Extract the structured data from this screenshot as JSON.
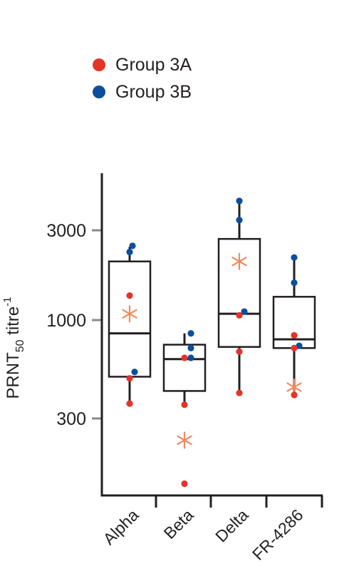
{
  "chart_data": {
    "type": "box",
    "ylabel_main": "PRNT",
    "ylabel_sub": "50",
    "ylabel_tail": " titre",
    "ylabel_sup": "-1",
    "yscale": "log",
    "ylim": [
      100,
      6000
    ],
    "yticks": [
      {
        "value": 300,
        "label": "300"
      },
      {
        "value": 1000,
        "label": "1000"
      },
      {
        "value": 3000,
        "label": "3000"
      }
    ],
    "categories": [
      "Alpha",
      "Beta",
      "Delta",
      "FR-4286"
    ],
    "legend": [
      {
        "name": "Group 3A",
        "color": "#e63329"
      },
      {
        "name": "Group 3B",
        "color": "#0b4f9c"
      }
    ],
    "boxes": [
      {
        "category": "Alpha",
        "q1": 500,
        "median": 850,
        "q3": 2050,
        "whisker_low": 360,
        "whisker_high": 2450
      },
      {
        "category": "Beta",
        "q1": 420,
        "median": 620,
        "q3": 740,
        "whisker_low": 360,
        "whisker_high": 850
      },
      {
        "category": "Delta",
        "q1": 720,
        "median": 1080,
        "q3": 2700,
        "whisker_low": 410,
        "whisker_high": 4400
      },
      {
        "category": "FR-4286",
        "q1": 710,
        "median": 790,
        "q3": 1330,
        "whisker_low": 400,
        "whisker_high": 2150
      }
    ],
    "points": [
      {
        "category": "Alpha",
        "group": "Group 3B",
        "value": 2480
      },
      {
        "category": "Alpha",
        "group": "Group 3B",
        "value": 2300
      },
      {
        "category": "Alpha",
        "group": "Group 3A",
        "value": 1350
      },
      {
        "category": "Alpha",
        "group": "Group 3B",
        "value": 530
      },
      {
        "category": "Alpha",
        "group": "Group 3A",
        "value": 490
      },
      {
        "category": "Alpha",
        "group": "Group 3A",
        "value": 360
      },
      {
        "category": "Beta",
        "group": "Group 3B",
        "value": 850
      },
      {
        "category": "Beta",
        "group": "Group 3B",
        "value": 710
      },
      {
        "category": "Beta",
        "group": "Group 3A",
        "value": 630
      },
      {
        "category": "Beta",
        "group": "Group 3B",
        "value": 630
      },
      {
        "category": "Beta",
        "group": "Group 3A",
        "value": 355
      },
      {
        "category": "Beta",
        "group": "Group 3A",
        "value": 135
      },
      {
        "category": "Delta",
        "group": "Group 3B",
        "value": 4300
      },
      {
        "category": "Delta",
        "group": "Group 3B",
        "value": 3400
      },
      {
        "category": "Delta",
        "group": "Group 3B",
        "value": 1110
      },
      {
        "category": "Delta",
        "group": "Group 3A",
        "value": 1060
      },
      {
        "category": "Delta",
        "group": "Group 3A",
        "value": 680
      },
      {
        "category": "Delta",
        "group": "Group 3A",
        "value": 410
      },
      {
        "category": "FR-4286",
        "group": "Group 3B",
        "value": 2150
      },
      {
        "category": "FR-4286",
        "group": "Group 3B",
        "value": 1580
      },
      {
        "category": "FR-4286",
        "group": "Group 3A",
        "value": 830
      },
      {
        "category": "FR-4286",
        "group": "Group 3B",
        "value": 730
      },
      {
        "category": "FR-4286",
        "group": "Group 3A",
        "value": 710
      },
      {
        "category": "FR-4286",
        "group": "Group 3A",
        "value": 400
      }
    ],
    "geomeans": [
      {
        "category": "Alpha",
        "value": 1080
      },
      {
        "category": "Beta",
        "value": 230
      },
      {
        "category": "Delta",
        "value": 2050
      },
      {
        "category": "FR-4286",
        "value": 440
      }
    ],
    "geomean_color": "#f08a5d",
    "axis_color": "#231f20"
  }
}
